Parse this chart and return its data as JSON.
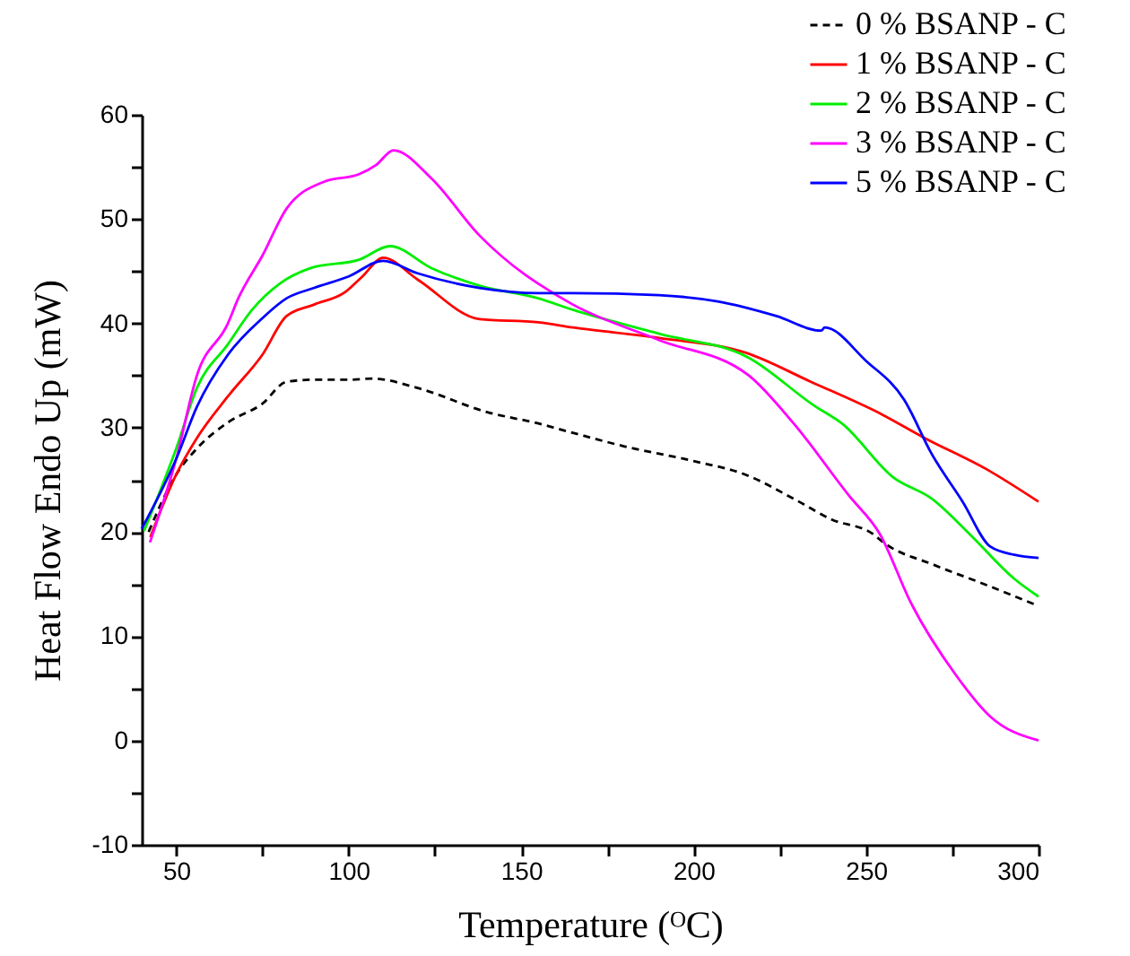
{
  "chart_data": {
    "type": "line",
    "xlabel": "Temperature (ᴼC)",
    "ylabel": "Heat Flow Endo Up (mW)",
    "xlim": [
      40,
      300
    ],
    "ylim": [
      -10,
      60
    ],
    "xticks": [
      50,
      {
        "value": 75,
        "label": null
      },
      100,
      {
        "value": 125,
        "label": null
      },
      150,
      {
        "value": 175,
        "label": null
      },
      200,
      {
        "value": 225,
        "label": null
      },
      250,
      {
        "value": 275,
        "label": null
      },
      300
    ],
    "yticks": [
      -10,
      {
        "value": -5,
        "label": null
      },
      0,
      {
        "value": 5,
        "label": null
      },
      10,
      {
        "value": 15,
        "label": null
      },
      20,
      {
        "value": 25,
        "label": null
      },
      30,
      {
        "value": 35,
        "label": null
      },
      40,
      {
        "value": 45,
        "label": null
      },
      50,
      {
        "value": 55,
        "label": null
      },
      60
    ],
    "grid": false,
    "legend": "top right",
    "marker": "none",
    "series": [
      {
        "name": "0 % BSANP - C",
        "color": "#000000",
        "line_style": "dashed",
        "x": [
          42,
          50,
          56,
          65,
          75,
          82,
          90,
          100,
          107,
          120,
          140,
          155,
          165,
          180,
          200,
          215,
          230,
          240,
          252,
          255,
          270,
          285,
          300
        ],
        "values": [
          20,
          25.5,
          28,
          30.5,
          32.3,
          34.4,
          34.6,
          34.6,
          34.7,
          33.8,
          31.5,
          30.4,
          29.5,
          28.2,
          26.8,
          25.5,
          23,
          21.2,
          19.8,
          19,
          16.8,
          14.9,
          12.9
        ]
      },
      {
        "name": "1 % BSANP - C",
        "color": "#ff0000",
        "line_style": "solid",
        "x": [
          42.5,
          50,
          56,
          65,
          75,
          82,
          90,
          99,
          104,
          110,
          120,
          138,
          155,
          165,
          190,
          215,
          234,
          255,
          267,
          285,
          300
        ],
        "values": [
          19.5,
          25.5,
          29,
          33,
          37,
          40.7,
          41.8,
          43,
          44.5,
          46.3,
          44.2,
          40.4,
          40.1,
          39.6,
          38.6,
          37.2,
          34.4,
          31.2,
          29,
          26,
          22.9
        ]
      },
      {
        "name": "2 % BSANP - C",
        "color": "#00ee00",
        "line_style": "solid",
        "x": [
          40.7,
          50,
          56,
          65,
          72,
          80,
          89,
          103,
          112,
          124,
          138,
          155,
          165,
          190,
          216,
          235,
          243,
          258,
          269,
          280,
          293,
          300
        ],
        "values": [
          20.1,
          28,
          33.8,
          38,
          41.3,
          43.8,
          45.3,
          46.1,
          47.4,
          45.3,
          43.6,
          42.4,
          41.3,
          39,
          36.7,
          32.1,
          30.4,
          25.2,
          23.2,
          19.8,
          15.5,
          13.8
        ]
      },
      {
        "name": "3 % BSANP - C",
        "color": "#ff00ff",
        "line_style": "solid",
        "x": [
          42.4,
          50,
          56,
          65,
          68,
          75,
          82,
          93,
          103,
          108,
          113,
          124,
          138,
          151,
          155,
          165,
          190,
          216,
          229,
          245,
          254,
          263,
          276,
          286,
          300
        ],
        "values": [
          19,
          27,
          35,
          40,
          42.4,
          46.5,
          51,
          53.6,
          54.3,
          55.2,
          56.6,
          53.9,
          48.4,
          44.7,
          43.8,
          41.8,
          38.4,
          35,
          30.4,
          23.5,
          19.8,
          13.2,
          6.3,
          2.3,
          0
        ]
      },
      {
        "name": "5 % BSANP - C",
        "color": "#0000ff",
        "line_style": "solid",
        "x": [
          40,
          50,
          56,
          65,
          75,
          82,
          90,
          100,
          110,
          120,
          138,
          155,
          165,
          190,
          207,
          224,
          237,
          238,
          250,
          261,
          269,
          278,
          286,
          293,
          300
        ],
        "values": [
          20.3,
          27,
          32,
          37,
          40.5,
          42.4,
          43.4,
          44.5,
          46,
          44.8,
          43.4,
          42.9,
          42.9,
          42.7,
          42.1,
          40.7,
          39.3,
          39.6,
          36.4,
          32.7,
          27.5,
          22.9,
          18.6,
          17.8,
          17.5
        ]
      }
    ]
  }
}
